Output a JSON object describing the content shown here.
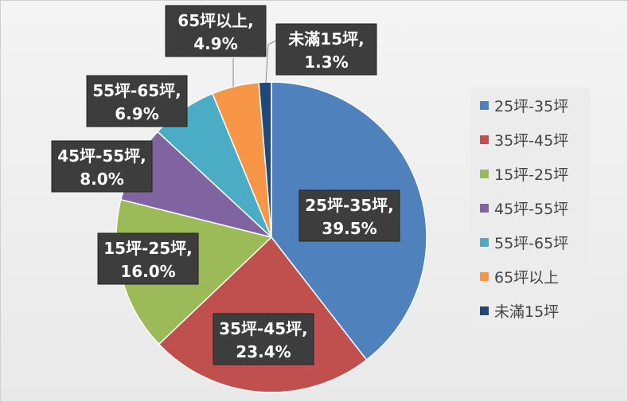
{
  "chart_data": {
    "type": "pie",
    "title": "",
    "slices": [
      {
        "label": "25坪-35坪",
        "value": 39.5,
        "display": "39.5%",
        "color": "#4f81bd"
      },
      {
        "label": "35坪-45坪",
        "value": 23.4,
        "display": "23.4%",
        "color": "#c0504d"
      },
      {
        "label": "15坪-25坪",
        "value": 16.0,
        "display": "16.0%",
        "color": "#9bbb59"
      },
      {
        "label": "45坪-55坪",
        "value": 8.0,
        "display": "8.0%",
        "color": "#8064a2"
      },
      {
        "label": "55坪-65坪",
        "value": 6.9,
        "display": "6.9%",
        "color": "#4bacc6"
      },
      {
        "label": "65坪以上",
        "value": 4.9,
        "display": "4.9%",
        "color": "#f79646"
      },
      {
        "label": "未滿15坪",
        "value": 1.3,
        "display": "1.3%",
        "color": "#1f497d"
      }
    ],
    "legend_position": "right",
    "data_label_style": "dark box, white bold text"
  }
}
